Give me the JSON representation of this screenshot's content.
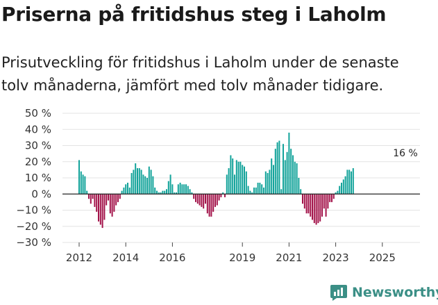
{
  "header": {
    "title": "Priserna på fritidshus steg i Laholm",
    "subtitle": "Prisutveckling för fritidshus i Laholm under de senaste tolv månaderna, jämfört med tolv månader tidigare."
  },
  "brand": {
    "name": "Newsworthy"
  },
  "colors": {
    "positive": "#12a39a",
    "negative": "#a3134a",
    "zero_line": "#222222",
    "grid": "#e3e3e3",
    "brand": "#3b8f86"
  },
  "chart_data": {
    "type": "bar",
    "title": "Priserna på fritidshus steg i Laholm",
    "xlabel": "",
    "ylabel": "",
    "ylim": [
      -30,
      50
    ],
    "y_ticks": [
      -30,
      -20,
      -10,
      0,
      10,
      20,
      30,
      40,
      50
    ],
    "y_tick_labels": [
      "−30 %",
      "−20 %",
      "−10 %",
      "0 %",
      "10 %",
      "20 %",
      "30 %",
      "40 %",
      "50 %"
    ],
    "x_ticks": [
      {
        "label": "2012",
        "month_index": 0
      },
      {
        "label": "2014",
        "month_index": 24
      },
      {
        "label": "2016",
        "month_index": 48
      },
      {
        "label": "2019",
        "month_index": 84
      },
      {
        "label": "2021",
        "month_index": 108
      },
      {
        "label": "2023",
        "month_index": 132
      },
      {
        "label": "2025",
        "month_index": 156
      }
    ],
    "start": "2012-01",
    "frequency": "monthly",
    "grid": true,
    "annotation": {
      "text": "16 %",
      "month_index": 170,
      "value": 16
    },
    "values": [
      21,
      14,
      12,
      11,
      2,
      -3,
      -6,
      -3,
      -8,
      -11,
      -17,
      -19,
      -21,
      -16,
      -7,
      -4,
      -12,
      -14,
      -11,
      -7,
      -5,
      -3,
      2,
      4,
      6,
      7,
      4,
      13,
      15,
      19,
      16,
      16,
      15,
      12,
      11,
      10,
      17,
      15,
      11,
      4,
      2,
      1,
      1,
      2,
      2,
      3,
      8,
      12,
      6,
      1,
      1,
      6,
      7,
      6,
      6,
      6,
      5,
      3,
      1,
      -3,
      -5,
      -6,
      -7,
      -8,
      -9,
      -6,
      -12,
      -14,
      -14,
      -11,
      -8,
      -7,
      -4,
      -2,
      1,
      -2,
      12,
      16,
      24,
      22,
      12,
      21,
      20,
      20,
      18,
      17,
      14,
      5,
      2,
      1,
      4,
      4,
      7,
      7,
      6,
      4,
      14,
      13,
      15,
      22,
      18,
      28,
      32,
      33,
      3,
      31,
      21,
      26,
      38,
      28,
      24,
      20,
      19,
      10,
      3,
      -6,
      -9,
      -12,
      -12,
      -14,
      -16,
      -18,
      -19,
      -18,
      -17,
      -14,
      -9,
      -14,
      -9,
      -5,
      -5,
      -3,
      1,
      2,
      5,
      7,
      9,
      11,
      15,
      15,
      14,
      16
    ]
  }
}
